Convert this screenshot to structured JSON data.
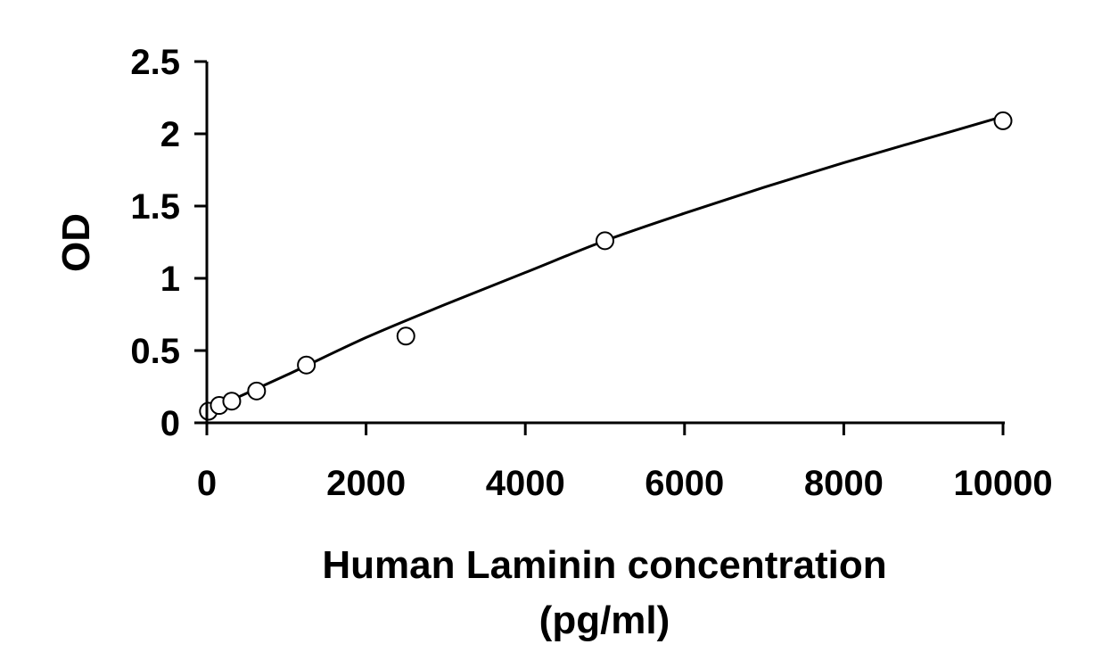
{
  "chart_data": {
    "type": "scatter",
    "title": "",
    "xlabel_lines": [
      "Human Laminin concentration",
      "(pg/ml)"
    ],
    "ylabel": "OD",
    "xlim": [
      0,
      10000
    ],
    "ylim": [
      0,
      2.5
    ],
    "x_ticks": [
      0,
      2000,
      4000,
      6000,
      8000,
      10000
    ],
    "y_ticks": [
      0,
      0.5,
      1,
      1.5,
      2,
      2.5
    ],
    "x_tick_labels": [
      "0",
      "2000",
      "4000",
      "6000",
      "8000",
      "10000"
    ],
    "y_tick_labels": [
      "0",
      "0.5",
      "1",
      "1.5",
      "2",
      "2.5"
    ],
    "grid": false,
    "legend": "none",
    "series": [
      {
        "marker": "open-circle",
        "x": [
          20,
          156,
          313,
          625,
          1250,
          2500,
          5000,
          10000
        ],
        "y": [
          0.08,
          0.12,
          0.15,
          0.22,
          0.4,
          0.6,
          1.26,
          2.09
        ]
      }
    ],
    "fit_curve": {
      "style": "solid",
      "x": [
        0,
        1000,
        2000,
        3000,
        4000,
        5000,
        6000,
        7000,
        8000,
        9000,
        10000
      ],
      "y": [
        0.08,
        0.33,
        0.59,
        0.82,
        1.04,
        1.26,
        1.45,
        1.63,
        1.8,
        1.96,
        2.12
      ]
    }
  }
}
